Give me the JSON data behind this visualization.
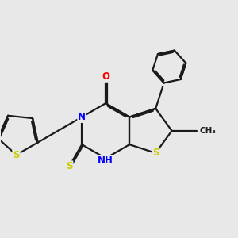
{
  "bg_color": "#e8e8e8",
  "bond_color": "#1a1a1a",
  "N_color": "#0000ff",
  "O_color": "#ff0000",
  "S_color": "#cccc00",
  "lw": 1.6,
  "dbo": 0.055,
  "figsize": [
    3.0,
    3.0
  ],
  "dpi": 100,
  "xlim": [
    0.5,
    9.5
  ],
  "ylim": [
    1.5,
    9.5
  ]
}
